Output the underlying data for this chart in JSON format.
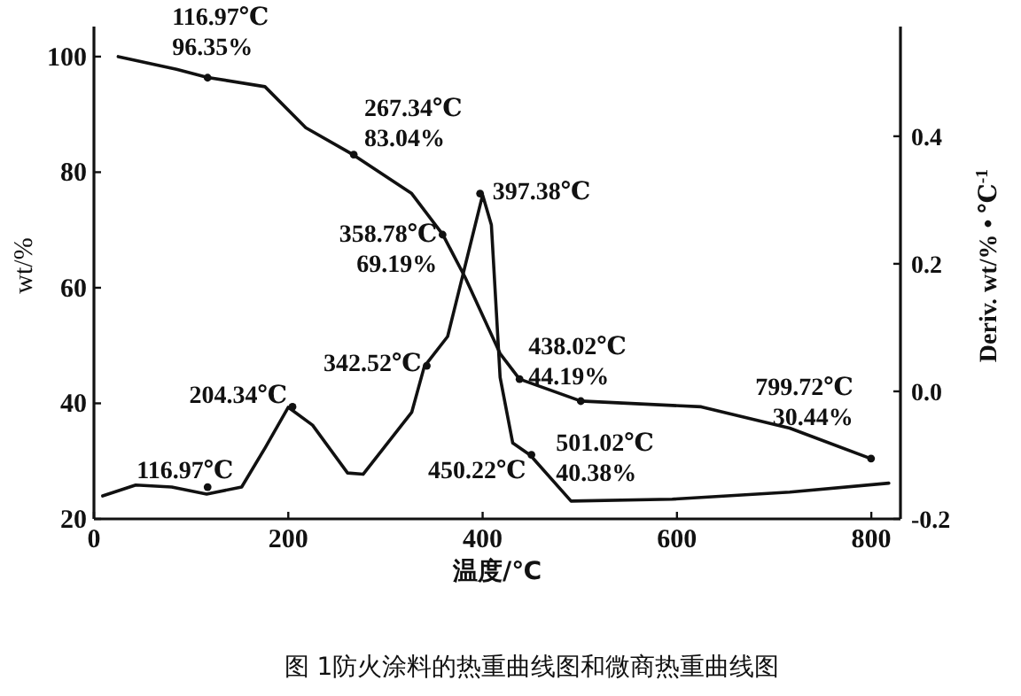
{
  "chart_data": {
    "type": "line",
    "xlabel": "温度/℃",
    "ylabel": "wt/%",
    "y2label": "Deriv. wt/% • ℃$^{-1}$",
    "xlim": [
      0,
      830
    ],
    "ylim": [
      20,
      105.2
    ],
    "y2lim": [
      -0.2,
      0.572
    ],
    "xticks": [
      0,
      200,
      400,
      600,
      800
    ],
    "yticks": [
      20,
      40,
      60,
      80,
      100
    ],
    "y2ticks": [
      -0.2,
      {
        "value": 0,
        "label": "0.0"
      },
      0.2,
      0.4
    ],
    "grid": false,
    "marker": "none",
    "line_style": "solid",
    "series": [
      {
        "color": "#111111",
        "x": [
          25,
          85,
          117,
          176,
          218,
          267,
          327,
          359,
          382,
          418,
          438,
          501,
          625,
          716,
          800
        ],
        "values": [
          100,
          97.8,
          96.4,
          94.8,
          87.7,
          83,
          76.3,
          69.2,
          61.8,
          48.6,
          44.2,
          40.4,
          39.4,
          35.7,
          30.4
        ]
      },
      {
        "color": "#111111",
        "axis": "y2",
        "x": [
          9,
          43,
          80,
          116,
          152,
          176,
          200,
          225,
          261,
          277,
          327,
          340,
          364,
          382,
          400,
          409,
          418,
          431,
          449,
          491,
          595,
          716,
          818
        ],
        "values": [
          -0.164,
          -0.147,
          -0.15,
          -0.161,
          -0.15,
          -0.089,
          -0.025,
          -0.053,
          -0.128,
          -0.13,
          -0.033,
          0.039,
          0.086,
          0.197,
          0.308,
          0.261,
          0.022,
          -0.081,
          -0.1,
          -0.172,
          -0.169,
          -0.158,
          -0.144
        ]
      }
    ],
    "annotations": [
      {
        "text": "116.97℃\n96.35%",
        "x": 116.97,
        "y": 96.35
      },
      {
        "text": "267.34℃\n83.04%",
        "x": 267.34,
        "y": 83.04
      },
      {
        "text": "358.78℃\n69.19%",
        "x": 358.78,
        "y": 69.19
      },
      {
        "text": "397.38℃",
        "x": 397.38,
        "y": 76.3
      },
      {
        "text": "438.02℃\n44.19%",
        "x": 438.02,
        "y": 44.19
      },
      {
        "text": "799.72℃\n30.44%",
        "x": 799.72,
        "y": 30.44
      },
      {
        "text": "501.02℃\n40.38%",
        "x": 501.02,
        "y": 40.38
      },
      {
        "text": "204.34℃",
        "x": 204.34,
        "y": 39.4
      },
      {
        "text": "342.52℃",
        "x": 342.52,
        "y": 46.5
      },
      {
        "text": "116.97℃",
        "x": 116.97,
        "y": 25.5
      },
      {
        "text": "450.22℃",
        "x": 450.22,
        "y": 31.1
      },
      "图 1防火涂料的热重曲线图和微商热重曲线图"
    ]
  }
}
